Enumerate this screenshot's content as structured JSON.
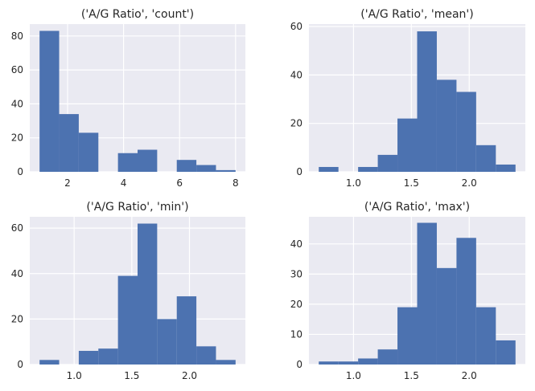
{
  "chart_data": [
    {
      "type": "bar",
      "title": "('A/G Ratio', 'count')",
      "xlabel": "",
      "ylabel": "",
      "xlim": [
        0.65,
        8.35
      ],
      "ylim": [
        0,
        87
      ],
      "xticks": [
        2,
        4,
        6,
        8
      ],
      "xtick_labels": [
        "2",
        "4",
        "6",
        "8"
      ],
      "yticks": [
        0,
        20,
        40,
        60,
        80
      ],
      "ytick_labels": [
        "0",
        "20",
        "40",
        "60",
        "80"
      ],
      "bin_edges": [
        1.0,
        1.7,
        2.4,
        3.1,
        3.8,
        4.5,
        5.2,
        5.9,
        6.6,
        7.3,
        8.0
      ],
      "values": [
        83,
        34,
        23,
        0,
        11,
        13,
        0,
        7,
        4,
        1
      ],
      "bar_color": "#4c72b0",
      "grid": true
    },
    {
      "type": "bar",
      "title": "('A/G Ratio', 'mean')",
      "xlabel": "",
      "ylabel": "",
      "xlim": [
        0.615,
        2.485
      ],
      "ylim": [
        0,
        61
      ],
      "xticks": [
        1.0,
        1.5,
        2.0
      ],
      "xtick_labels": [
        "1.0",
        "1.5",
        "2.0"
      ],
      "yticks": [
        0,
        20,
        40,
        60
      ],
      "ytick_labels": [
        "0",
        "20",
        "40",
        "60"
      ],
      "bin_edges": [
        0.7,
        0.87,
        1.04,
        1.21,
        1.38,
        1.55,
        1.72,
        1.89,
        2.06,
        2.23,
        2.4
      ],
      "values": [
        2,
        0,
        2,
        7,
        22,
        58,
        38,
        33,
        11,
        3
      ],
      "bar_color": "#4c72b0",
      "grid": true
    },
    {
      "type": "bar",
      "title": "('A/G Ratio', 'min')",
      "xlabel": "",
      "ylabel": "",
      "xlim": [
        0.615,
        2.485
      ],
      "ylim": [
        0,
        65
      ],
      "xticks": [
        1.0,
        1.5,
        2.0
      ],
      "xtick_labels": [
        "1.0",
        "1.5",
        "2.0"
      ],
      "yticks": [
        0,
        20,
        40,
        60
      ],
      "ytick_labels": [
        "0",
        "20",
        "40",
        "60"
      ],
      "bin_edges": [
        0.7,
        0.87,
        1.04,
        1.21,
        1.38,
        1.55,
        1.72,
        1.89,
        2.06,
        2.23,
        2.4
      ],
      "values": [
        2,
        0,
        6,
        7,
        39,
        62,
        20,
        30,
        8,
        2
      ],
      "bar_color": "#4c72b0",
      "grid": true
    },
    {
      "type": "bar",
      "title": "('A/G Ratio', 'max')",
      "xlabel": "",
      "ylabel": "",
      "xlim": [
        0.615,
        2.485
      ],
      "ylim": [
        0,
        49
      ],
      "xticks": [
        1.0,
        1.5,
        2.0
      ],
      "xtick_labels": [
        "1.0",
        "1.5",
        "2.0"
      ],
      "yticks": [
        0,
        10,
        20,
        30,
        40
      ],
      "ytick_labels": [
        "0",
        "10",
        "20",
        "30",
        "40"
      ],
      "bin_edges": [
        0.7,
        0.87,
        1.04,
        1.21,
        1.38,
        1.55,
        1.72,
        1.89,
        2.06,
        2.23,
        2.4
      ],
      "values": [
        1,
        1,
        2,
        5,
        19,
        47,
        32,
        42,
        19,
        8
      ],
      "bar_color": "#4c72b0",
      "grid": true
    }
  ],
  "colors": {
    "axes_background": "#eaeaf2",
    "grid": "#ffffff",
    "bar": "#4c72b0",
    "text": "#262626"
  }
}
